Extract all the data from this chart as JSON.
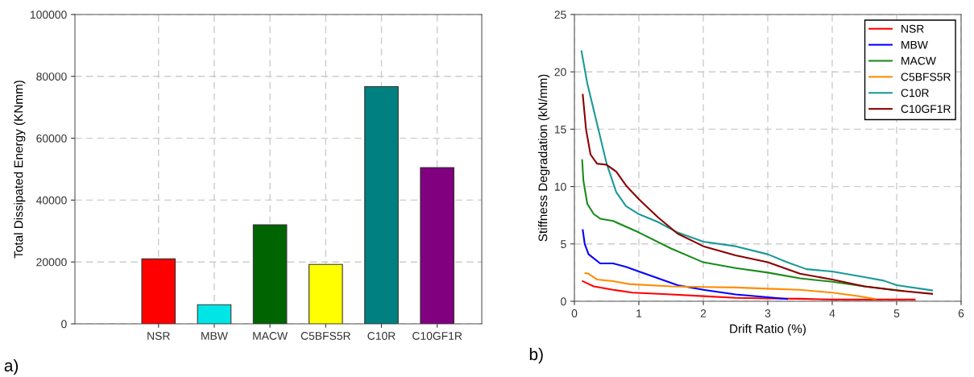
{
  "chart_data": [
    {
      "type": "bar",
      "ylabel": "Total Dissipated Energy (KNmm)",
      "categories": [
        "NSR",
        "MBW",
        "MACW",
        "C5BFS5R",
        "C10R",
        "C10GF1R"
      ],
      "values": [
        21000,
        6200,
        32000,
        19200,
        76700,
        50500
      ],
      "colors": [
        "#ff0000",
        "#00e5e5",
        "#006400",
        "#ffff00",
        "#008080",
        "#800080"
      ],
      "ylim": [
        0,
        100000
      ],
      "yticks": [
        0,
        20000,
        40000,
        60000,
        80000,
        100000
      ],
      "grid": true,
      "annotations": [
        "a)"
      ]
    },
    {
      "type": "line",
      "xlabel": "Drift Ratio (%)",
      "ylabel": "Stiffness Degradation (kN/mm)",
      "xlim": [
        0,
        6
      ],
      "ylim": [
        0,
        25
      ],
      "xticks": [
        0,
        1,
        2,
        3,
        4,
        5,
        6
      ],
      "yticks": [
        0,
        5,
        10,
        15,
        20,
        25
      ],
      "grid": true,
      "legend": "top right",
      "annotations": [
        "b)"
      ],
      "series": [
        {
          "name": "NSR",
          "color": "#ff0000",
          "x": [
            0.13,
            0.3,
            0.6,
            0.9,
            1.5,
            2,
            2.5,
            3,
            3.5,
            4,
            4.5,
            5.28
          ],
          "values": [
            1.75,
            1.3,
            1.0,
            0.75,
            0.6,
            0.45,
            0.3,
            0.25,
            0.22,
            0.15,
            0.15,
            0.15
          ]
        },
        {
          "name": "MBW",
          "color": "#0000ff",
          "x": [
            0.13,
            0.16,
            0.22,
            0.4,
            0.6,
            0.8,
            1,
            1.3,
            1.6,
            2,
            2.5,
            3,
            3.3
          ],
          "values": [
            6.2,
            5,
            4.1,
            3.3,
            3.3,
            3.0,
            2.6,
            2.0,
            1.4,
            1.0,
            0.6,
            0.35,
            0.2
          ]
        },
        {
          "name": "MACW",
          "color": "#1a8c1a",
          "x": [
            0.12,
            0.14,
            0.2,
            0.3,
            0.4,
            0.6,
            1,
            1.5,
            2,
            2.5,
            3,
            3.5,
            4,
            4.5,
            5.1
          ],
          "values": [
            12.3,
            10.5,
            8.5,
            7.6,
            7.2,
            7.0,
            6.0,
            4.6,
            3.4,
            2.9,
            2.5,
            2.0,
            1.7,
            1.3,
            0.9
          ]
        },
        {
          "name": "C5BFS5R",
          "color": "#ff8c00",
          "x": [
            0.17,
            0.22,
            0.35,
            0.6,
            0.85,
            1.5,
            2,
            2.5,
            3,
            3.5,
            4,
            4.4,
            4.67
          ],
          "values": [
            2.45,
            2.4,
            1.9,
            1.75,
            1.5,
            1.3,
            1.25,
            1.2,
            1.1,
            1.0,
            0.75,
            0.45,
            0.2
          ]
        },
        {
          "name": "C10R",
          "color": "#1a9999",
          "x": [
            0.11,
            0.2,
            0.35,
            0.5,
            0.65,
            0.8,
            1,
            1.3,
            1.6,
            2,
            2.5,
            3,
            3.3,
            3.6,
            4,
            4.5,
            4.8,
            5,
            5.55
          ],
          "values": [
            21.8,
            19,
            15.5,
            12,
            9.5,
            8.3,
            7.6,
            6.9,
            6.0,
            5.2,
            4.8,
            4.1,
            3.4,
            2.8,
            2.6,
            2.1,
            1.8,
            1.4,
            0.95
          ]
        },
        {
          "name": "C10GF1R",
          "color": "#8b0000",
          "x": [
            0.13,
            0.18,
            0.25,
            0.35,
            0.5,
            0.65,
            0.8,
            1,
            1.3,
            1.6,
            2,
            2.5,
            3,
            3.5,
            4,
            4.5,
            5,
            5.55
          ],
          "values": [
            18,
            15,
            12.8,
            12,
            11.9,
            11.3,
            10.1,
            8.9,
            7.3,
            5.9,
            4.8,
            4.0,
            3.4,
            2.4,
            1.9,
            1.3,
            0.95,
            0.65
          ]
        }
      ]
    }
  ]
}
